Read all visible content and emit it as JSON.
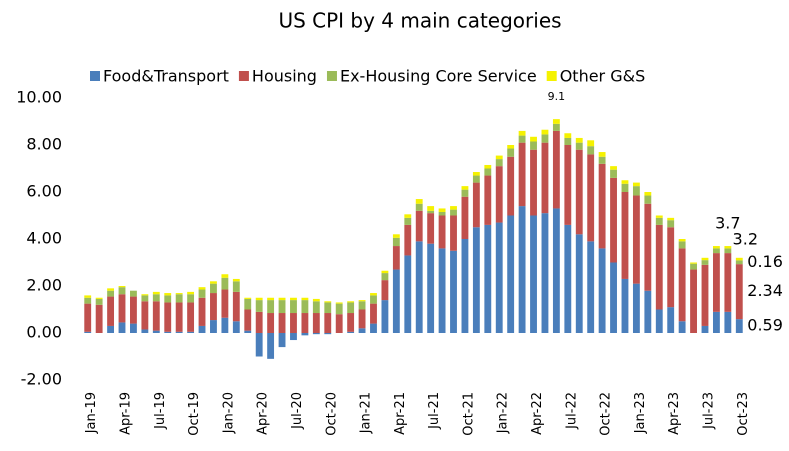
{
  "chart_data": {
    "type": "bar",
    "stacked": true,
    "title": "US CPI by 4 main categories",
    "categories": [
      "Jan-19",
      null,
      null,
      "Apr-19",
      null,
      null,
      "Jul-19",
      null,
      null,
      "Oct-19",
      null,
      null,
      "Jan-20",
      null,
      null,
      "Apr-20",
      null,
      null,
      "Jul-20",
      null,
      null,
      "Oct-20",
      null,
      null,
      "Jan-21",
      null,
      null,
      "Apr-21",
      null,
      null,
      "Jul-21",
      null,
      null,
      "Oct-21",
      null,
      null,
      "Jan-22",
      null,
      null,
      "Apr-22",
      null,
      null,
      "Jul-22",
      null,
      null,
      "Oct-22",
      null,
      null,
      "Jan-23",
      null,
      null,
      "Apr-23",
      null,
      null,
      "Jul-23",
      null,
      null,
      "Oct-23"
    ],
    "series": [
      {
        "name": "Food&Transport",
        "color": "#4a7ebb",
        "values": [
          0.05,
          0.0,
          0.3,
          0.45,
          0.4,
          0.15,
          0.1,
          0.05,
          0.05,
          0.05,
          0.3,
          0.55,
          0.65,
          0.5,
          0.1,
          -1.0,
          -1.1,
          -0.6,
          -0.3,
          -0.1,
          -0.05,
          -0.05,
          0.0,
          0.05,
          0.2,
          0.4,
          1.4,
          2.7,
          3.3,
          3.9,
          3.8,
          3.6,
          3.5,
          4.0,
          4.5,
          4.6,
          4.7,
          5.0,
          5.4,
          5.0,
          5.1,
          5.3,
          4.6,
          4.2,
          3.9,
          3.6,
          3.0,
          2.3,
          2.1,
          1.8,
          1.0,
          1.1,
          0.5,
          0.0,
          0.3,
          0.9,
          0.9,
          0.59
        ]
      },
      {
        "name": "Housing",
        "color": "#c0504d",
        "values": [
          1.2,
          1.2,
          1.25,
          1.2,
          1.15,
          1.2,
          1.25,
          1.25,
          1.25,
          1.25,
          1.2,
          1.15,
          1.2,
          1.25,
          0.9,
          0.9,
          0.85,
          0.85,
          0.85,
          0.85,
          0.85,
          0.85,
          0.8,
          0.8,
          0.8,
          0.85,
          0.85,
          1.0,
          1.3,
          1.3,
          1.3,
          1.4,
          1.5,
          1.8,
          1.9,
          2.1,
          2.4,
          2.5,
          2.7,
          2.8,
          3.0,
          3.3,
          3.4,
          3.6,
          3.7,
          3.6,
          3.6,
          3.7,
          3.75,
          3.7,
          3.6,
          3.4,
          3.1,
          2.7,
          2.6,
          2.5,
          2.5,
          2.34
        ]
      },
      {
        "name": "Ex-Housing Core Service",
        "color": "#9bbb59",
        "values": [
          0.25,
          0.25,
          0.25,
          0.3,
          0.25,
          0.25,
          0.3,
          0.3,
          0.35,
          0.35,
          0.35,
          0.4,
          0.5,
          0.45,
          0.45,
          0.5,
          0.55,
          0.55,
          0.55,
          0.55,
          0.5,
          0.45,
          0.45,
          0.45,
          0.35,
          0.35,
          0.3,
          0.35,
          0.3,
          0.3,
          0.1,
          0.15,
          0.25,
          0.3,
          0.3,
          0.3,
          0.3,
          0.35,
          0.3,
          0.35,
          0.35,
          0.3,
          0.3,
          0.3,
          0.35,
          0.3,
          0.35,
          0.35,
          0.4,
          0.35,
          0.3,
          0.3,
          0.3,
          0.25,
          0.2,
          0.2,
          0.2,
          0.16
        ]
      },
      {
        "name": "Other G&S",
        "color": "#f5f200",
        "values": [
          0.1,
          0.05,
          0.1,
          0.05,
          0.0,
          0.05,
          0.1,
          0.1,
          0.05,
          0.1,
          0.1,
          0.1,
          0.15,
          0.1,
          0.05,
          0.1,
          0.1,
          0.1,
          0.1,
          0.1,
          0.1,
          0.05,
          0.05,
          0.05,
          0.05,
          0.1,
          0.1,
          0.15,
          0.15,
          0.2,
          0.2,
          0.15,
          0.15,
          0.15,
          0.15,
          0.15,
          0.15,
          0.15,
          0.2,
          0.2,
          0.2,
          0.2,
          0.2,
          0.2,
          0.25,
          0.2,
          0.15,
          0.15,
          0.15,
          0.15,
          0.1,
          0.1,
          0.1,
          0.05,
          0.1,
          0.1,
          0.1,
          0.11
        ]
      }
    ],
    "annotations": [
      "9.1",
      "3.7",
      "3.2"
    ],
    "ylim": [
      -2,
      10
    ],
    "yticks": [
      {
        "value": -2,
        "label": "-2.00"
      },
      {
        "value": 0,
        "label": "0.00"
      },
      {
        "value": 2,
        "label": "2.00"
      },
      {
        "value": 4,
        "label": "4.00"
      },
      {
        "value": 6,
        "label": "6.00"
      },
      {
        "value": 8,
        "label": "8.00"
      },
      {
        "value": 10,
        "label": "10.00"
      }
    ],
    "grid": false,
    "legend": "top"
  }
}
